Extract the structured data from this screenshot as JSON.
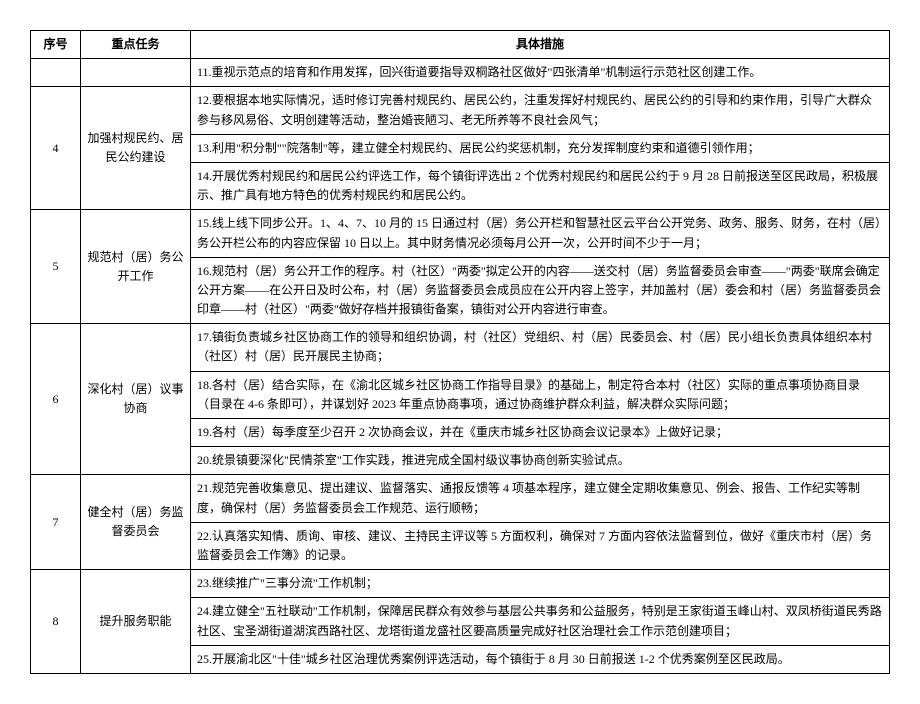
{
  "table": {
    "headers": {
      "index": "序号",
      "task": "重点任务",
      "measure": "具体措施"
    },
    "rows": [
      {
        "index": "",
        "task": "",
        "measures": [
          "11.重视示范点的培育和作用发挥，回兴街道要指导双桐路社区做好\"四张清单\"机制运行示范社区创建工作。"
        ]
      },
      {
        "index": "4",
        "task": "加强村规民约、居民公约建设",
        "measures": [
          "12.要根据本地实际情况，适时修订完善村规民约、居民公约，注重发挥好村规民约、居民公约的引导和约束作用，引导广大群众参与移风易俗、文明创建等活动，整治婚丧陋习、老无所养等不良社会风气；",
          "13.利用\"积分制\"\"院落制\"等，建立健全村规民约、居民公约奖惩机制，充分发挥制度约束和道德引领作用；",
          "14.开展优秀村规民约和居民公约评选工作，每个镇街评选出 2 个优秀村规民约和居民公约于 9 月 28 日前报送至区民政局，积极展示、推广具有地方特色的优秀村规民约和居民公约。"
        ]
      },
      {
        "index": "5",
        "task": "规范村（居）务公开工作",
        "measures": [
          "15.线上线下同步公开。1、4、7、10 月的 15 日通过村（居）务公开栏和智慧社区云平台公开党务、政务、服务、财务，在村（居）务公开栏公布的内容应保留 10 日以上。其中财务情况必须每月公开一次，公开时间不少于一月；",
          "16.规范村（居）务公开工作的程序。村（社区）\"两委\"拟定公开的内容——送交村（居）务监督委员会审查——\"两委\"联席会确定公开方案——在公开日及时公布，村（居）务监督委员会成员应在公开内容上签字，并加盖村（居）委会和村（居）务监督委员会印章——村（社区）\"两委\"做好存档并报镇街备案，镇街对公开内容进行审查。"
        ]
      },
      {
        "index": "6",
        "task": "深化村（居）议事协商",
        "measures": [
          "17.镇街负责城乡社区协商工作的领导和组织协调，村（社区）党组织、村（居）民委员会、村（居）民小组长负责具体组织本村（社区）村（居）民开展民主协商；",
          "18.各村（居）结合实际，在《渝北区城乡社区协商工作指导目录》的基础上，制定符合本村（社区）实际的重点事项协商目录（目录在 4-6 条即可），并谋划好 2023 年重点协商事项，通过协商维护群众利益，解决群众实际问题；",
          "19.各村（居）每季度至少召开 2 次协商会议，并在《重庆市城乡社区协商会议记录本》上做好记录；",
          "20.统景镇要深化\"民情茶室\"工作实践，推进完成全国村级议事协商创新实验试点。"
        ]
      },
      {
        "index": "7",
        "task": "健全村（居）务监督委员会",
        "measures": [
          "21.规范完善收集意见、提出建议、监督落实、通报反馈等 4 项基本程序，建立健全定期收集意见、例会、报告、工作纪实等制度，确保村（居）务监督委员会工作规范、运行顺畅；",
          "22.认真落实知情、质询、审核、建议、主持民主评议等 5 方面权利，确保对 7 方面内容依法监督到位，做好《重庆市村（居）务监督委员会工作簿》的记录。"
        ]
      },
      {
        "index": "8",
        "task": "提升服务职能",
        "measures": [
          "23.继续推广\"三事分流\"工作机制；",
          "24.建立健全\"五社联动\"工作机制，保障居民群众有效参与基层公共事务和公益服务，特别是王家街道玉峰山村、双凤桥街道民秀路社区、宝圣湖街道湖滨西路社区、龙塔街道龙盛社区要高质量完成好社区治理社会工作示范创建项目；",
          "25.开展渝北区\"十佳\"城乡社区治理优秀案例评选活动，每个镇街于 8 月 30 日前报送 1-2 个优秀案例至区民政局。"
        ]
      }
    ]
  }
}
